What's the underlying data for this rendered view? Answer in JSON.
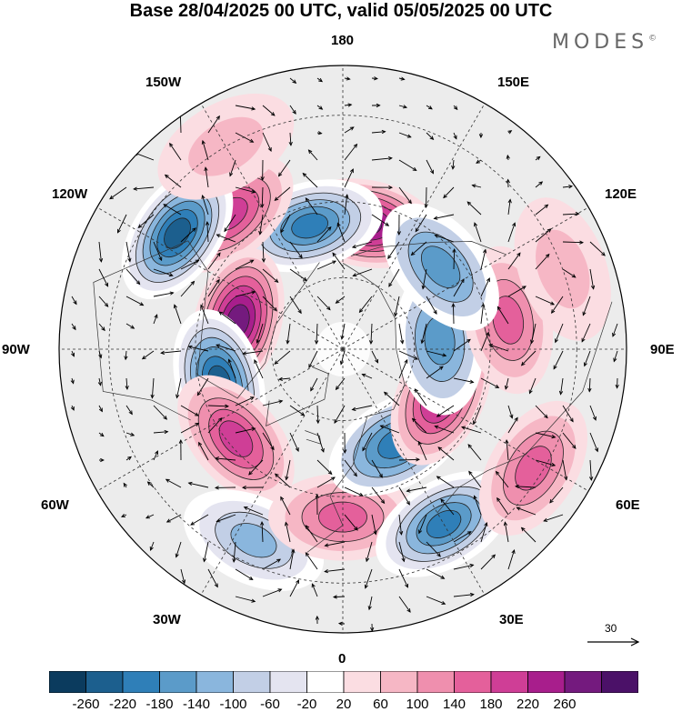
{
  "title": "Base 28/04/2025 00 UTC, valid 05/05/2025 00 UTC",
  "brand": {
    "name": "MODES",
    "mark": "©"
  },
  "longitude_labels": {
    "n180": "180",
    "w150": "150W",
    "e150": "150E",
    "w120": "120W",
    "e120": "120E",
    "w90": "90W",
    "e90": "90E",
    "w60": "60W",
    "e60": "60E",
    "w30": "30W",
    "e30": "30E",
    "n0": "0"
  },
  "projection": "north-polar-stereographic",
  "colorbar": {
    "colors": [
      "#0b3b5e",
      "#1c5f8e",
      "#2f7fb8",
      "#5b9bc9",
      "#8ab6dd",
      "#c2cfe6",
      "#e4e4f0",
      "#ffffff",
      "#fbdde2",
      "#f6b7c5",
      "#ef8fae",
      "#e4609b",
      "#cf3e96",
      "#a81e8c",
      "#741a7e",
      "#4b1168"
    ],
    "labels": [
      "-260",
      "-220",
      "-180",
      "-140",
      "-100",
      "-60",
      "-20",
      "20",
      "60",
      "100",
      "140",
      "180",
      "220",
      "260"
    ]
  },
  "vector_reference": {
    "label": "30"
  },
  "anomaly_centers": [
    {
      "lon_deg": 170,
      "lat_deg": 55,
      "value": 260
    },
    {
      "lon_deg": -165,
      "lat_deg": 55,
      "value": -220
    },
    {
      "lon_deg": -140,
      "lat_deg": 43,
      "value": 180
    },
    {
      "lon_deg": -125,
      "lat_deg": 37,
      "value": -260
    },
    {
      "lon_deg": -105,
      "lat_deg": 60,
      "value": 260
    },
    {
      "lon_deg": -75,
      "lat_deg": 55,
      "value": -260
    },
    {
      "lon_deg": -50,
      "lat_deg": 52,
      "value": 200
    },
    {
      "lon_deg": -25,
      "lat_deg": 35,
      "value": -140
    },
    {
      "lon_deg": 0,
      "lat_deg": 45,
      "value": 160
    },
    {
      "lon_deg": 30,
      "lat_deg": 37,
      "value": -220
    },
    {
      "lon_deg": 30,
      "lat_deg": 60,
      "value": -200
    },
    {
      "lon_deg": 58,
      "lat_deg": 32,
      "value": 140
    },
    {
      "lon_deg": 65,
      "lat_deg": 60,
      "value": 250
    },
    {
      "lon_deg": 95,
      "lat_deg": 63,
      "value": -160
    },
    {
      "lon_deg": 100,
      "lat_deg": 45,
      "value": 140
    },
    {
      "lon_deg": 130,
      "lat_deg": 55,
      "value": -160
    },
    {
      "lon_deg": 110,
      "lat_deg": 30,
      "value": 60
    },
    {
      "lon_deg": -150,
      "lat_deg": 30,
      "value": 60
    }
  ]
}
